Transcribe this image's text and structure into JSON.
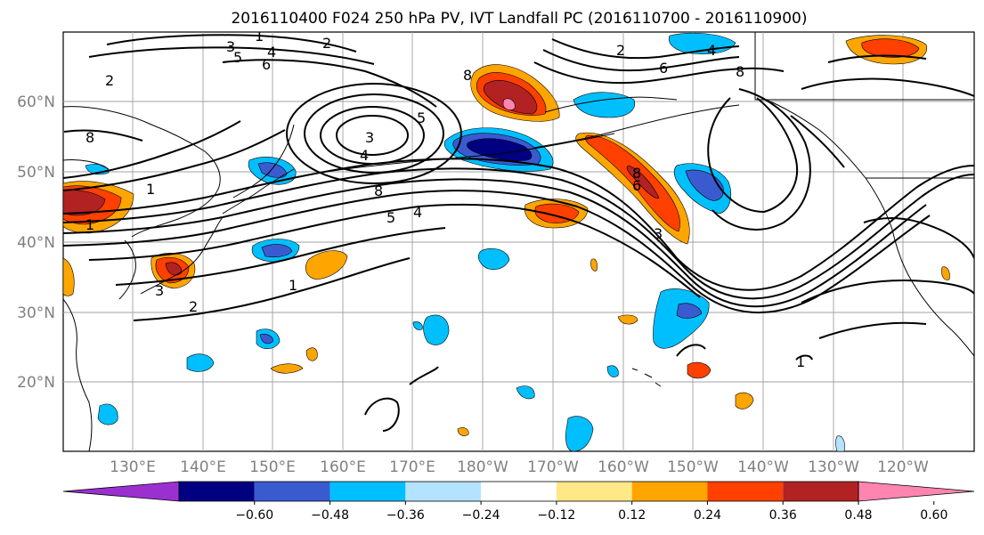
{
  "title": "2016110400 F024 250 hPa PV, IVT Landfall PC (2016110700 - 2016110900)",
  "lat_labels": [
    "60°N",
    "50°N",
    "40°N",
    "30°N",
    "20°N"
  ],
  "lon_labels": [
    "130°E",
    "140°E",
    "150°E",
    "160°E",
    "170°E",
    "180°W",
    "170°W",
    "160°W",
    "150°W",
    "140°W",
    "130°W",
    "120°W"
  ],
  "colorbar": {
    "ticks": [
      "−0.60",
      "−0.48",
      "−0.36",
      "−0.24",
      "−0.12",
      "0.12",
      "0.24",
      "0.36",
      "0.48",
      "0.60"
    ],
    "colors": [
      "#9b30d0",
      "#000080",
      "#3a5bd0",
      "#00bfff",
      "#b3e3ff",
      "#ffffff",
      "#ffe885",
      "#ffa500",
      "#ff4000",
      "#b22222",
      "#ff85b0"
    ]
  },
  "contour_labels": [
    "1",
    "2",
    "3",
    "4",
    "5",
    "6",
    "8",
    "8",
    "3",
    "4",
    "5",
    "2",
    "6",
    "8",
    "1",
    "2",
    "3",
    "4",
    "5",
    "8",
    "1",
    "2",
    "1",
    "1",
    "3",
    "4",
    "6",
    "8"
  ]
}
